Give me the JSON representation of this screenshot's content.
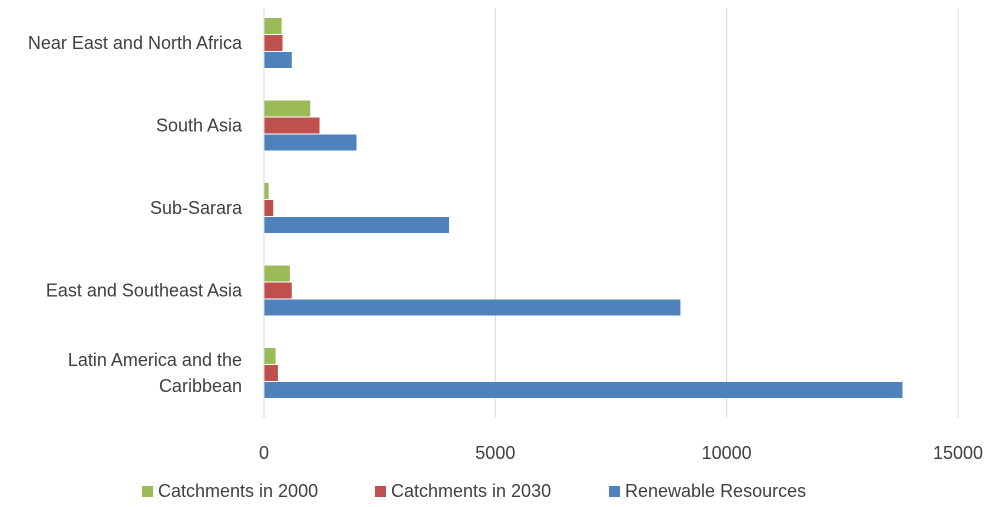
{
  "chart_data": {
    "type": "bar",
    "orientation": "horizontal",
    "categories": [
      [
        "Near East and North Africa"
      ],
      [
        "South Asia"
      ],
      [
        "Sub-Sarara"
      ],
      [
        "East and Southeast Asia"
      ],
      [
        "Latin America and the",
        "Caribbean"
      ]
    ],
    "series": [
      {
        "name": "Catchments in 2000",
        "color": "#9BBB59",
        "values": [
          380,
          1000,
          100,
          560,
          250
        ]
      },
      {
        "name": "Catchments in 2030",
        "color": "#C0504D",
        "values": [
          400,
          1200,
          200,
          600,
          300
        ]
      },
      {
        "name": "Renewable Resources",
        "color": "#4F81BD",
        "values": [
          600,
          2000,
          4000,
          9000,
          13800
        ]
      }
    ],
    "xlim": [
      0,
      15000
    ],
    "xticks": [
      "0",
      "5000",
      "10000",
      "15000"
    ],
    "xtick_values": [
      0,
      5000,
      10000,
      15000
    ],
    "grid": true,
    "legend_position": "bottom",
    "title": "",
    "xlabel": "",
    "ylabel": ""
  }
}
